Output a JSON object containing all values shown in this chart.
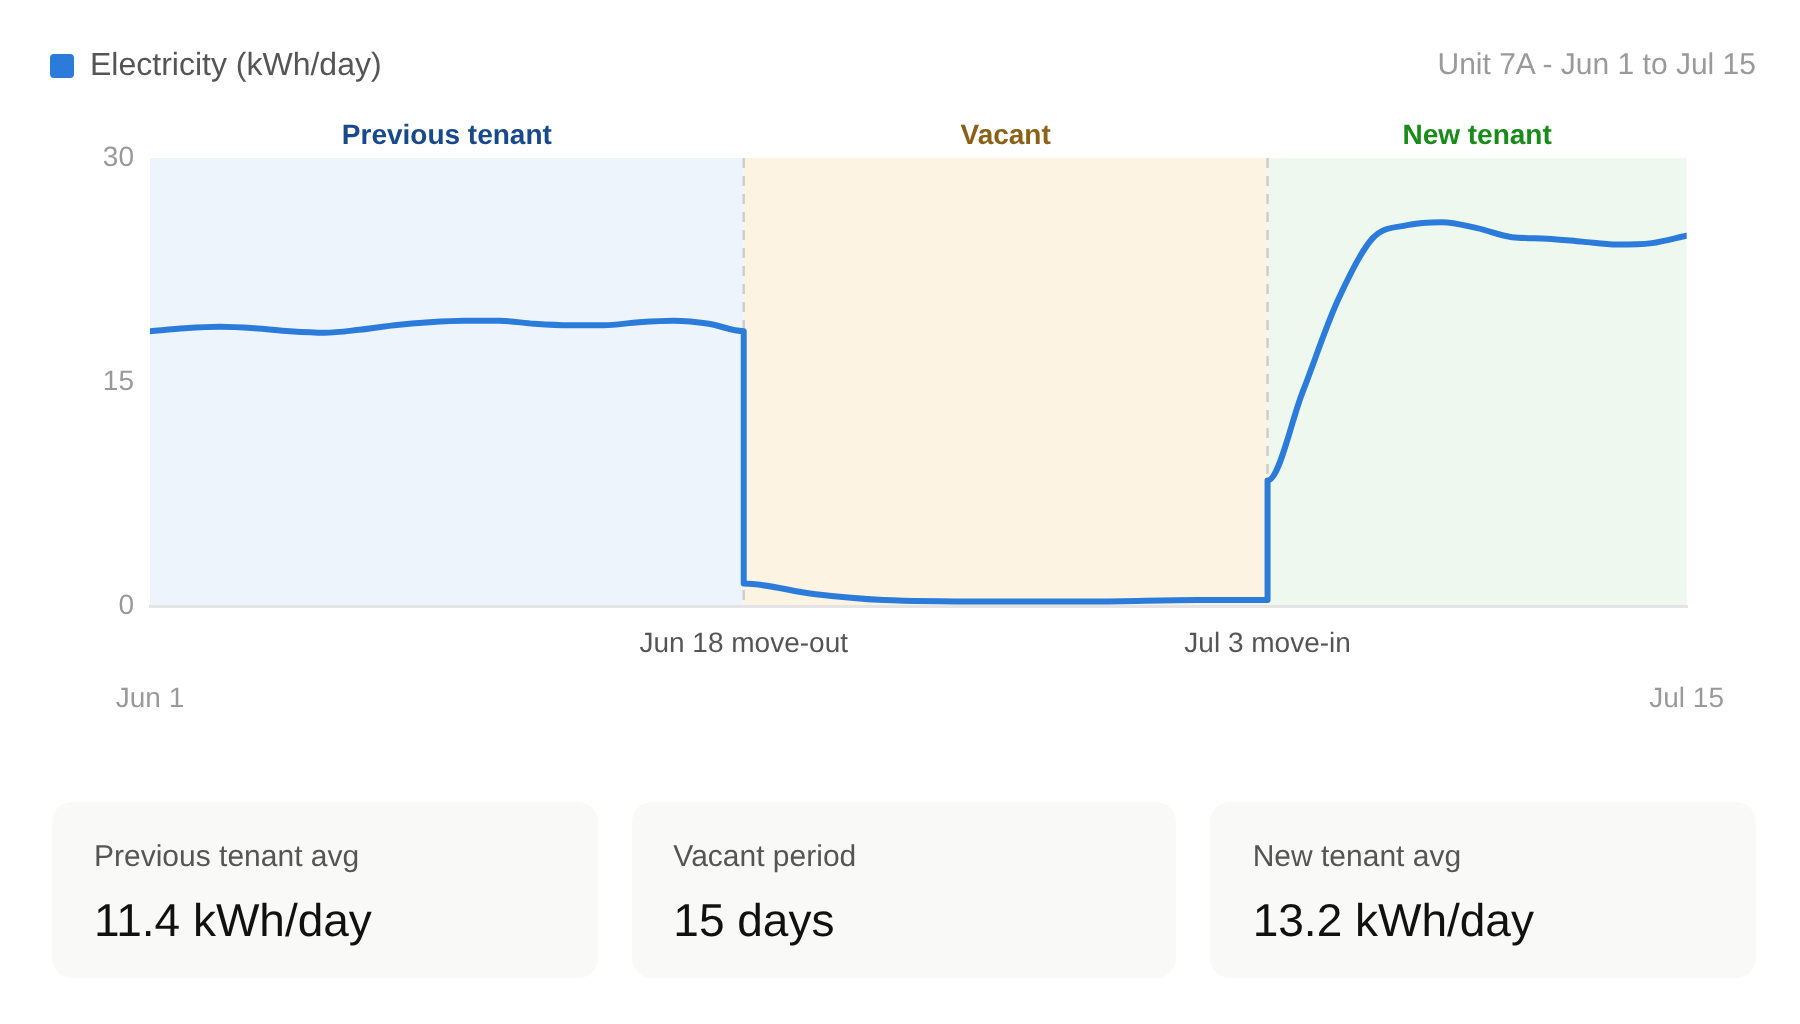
{
  "chart_data": [
    {
      "type": "line",
      "title": "Unit 7A - Jun 1 to Jul 15",
      "x": [
        "--06-01",
        "--06-02",
        "--06-03",
        "--06-04",
        "--06-05",
        "--06-06",
        "--06-07",
        "--06-08",
        "--06-09",
        "--06-10",
        "--06-11",
        "--06-12",
        "--06-13",
        "--06-14",
        "--06-15",
        "--06-16",
        "--06-17",
        "--06-18",
        "--06-18",
        "--06-20",
        "--06-22",
        "--06-25",
        "--06-28",
        "--07-01",
        "--07-03",
        "--07-03",
        "--07-04",
        "--07-05",
        "--07-06",
        "--07-07",
        "--07-08",
        "--07-09",
        "--07-10",
        "--07-11",
        "--07-12",
        "--07-13",
        "--07-14",
        "--07-15"
      ],
      "series": [
        {
          "name": "Electricity (kWh/day)",
          "color": "#2b7bdb",
          "values": [
            18.4,
            18.6,
            18.7,
            18.6,
            18.4,
            18.3,
            18.5,
            18.8,
            19.0,
            19.1,
            19.1,
            18.9,
            18.8,
            18.8,
            19.0,
            19.1,
            18.9,
            18.4,
            1.5,
            0.8,
            0.4,
            0.3,
            0.3,
            0.4,
            0.4,
            8.4,
            14.3,
            20.4,
            24.6,
            25.5,
            25.7,
            25.3,
            24.7,
            24.6,
            24.4,
            24.2,
            24.3,
            24.8
          ]
        }
      ],
      "xlim": [
        "--06-01",
        "--07-15"
      ],
      "xticks": [
        {
          "value": "--06-01",
          "label": "Jun 1"
        },
        {
          "value": "--07-15",
          "label": "Jul 15"
        }
      ],
      "ylim": [
        0,
        30
      ],
      "yticks": [
        0,
        15,
        30
      ],
      "grid": false,
      "legend": "top left",
      "marker": "none",
      "bands": [
        {
          "axis": "x",
          "from": "--06-01",
          "to": "--06-18",
          "label": "Previous tenant",
          "color": "#eef4fc"
        },
        {
          "axis": "x",
          "from": "--06-18",
          "to": "--07-03",
          "label": "Vacant",
          "color": "#fdf3e2"
        },
        {
          "axis": "x",
          "from": "--07-03",
          "to": "--07-15",
          "label": "New tenant",
          "color": "#eef8ee"
        }
      ],
      "ref_lines": [
        {
          "axis": "x",
          "value": "--06-18",
          "label": "Jun 18 move-out",
          "color": "#cccccc",
          "line_style": "dashed"
        },
        {
          "axis": "x",
          "value": "--07-03",
          "label": "Jul 3 move-in",
          "color": "#cccccc",
          "line_style": "dashed"
        }
      ]
    },
    {
      "type": "other",
      "title": "Previous tenant avg",
      "annotations": [
        "11.4 kWh/day"
      ]
    },
    {
      "type": "other",
      "title": "Vacant period",
      "annotations": [
        "15 days"
      ]
    },
    {
      "type": "other",
      "title": "New tenant avg",
      "annotations": [
        "13.2 kWh/day"
      ]
    }
  ]
}
